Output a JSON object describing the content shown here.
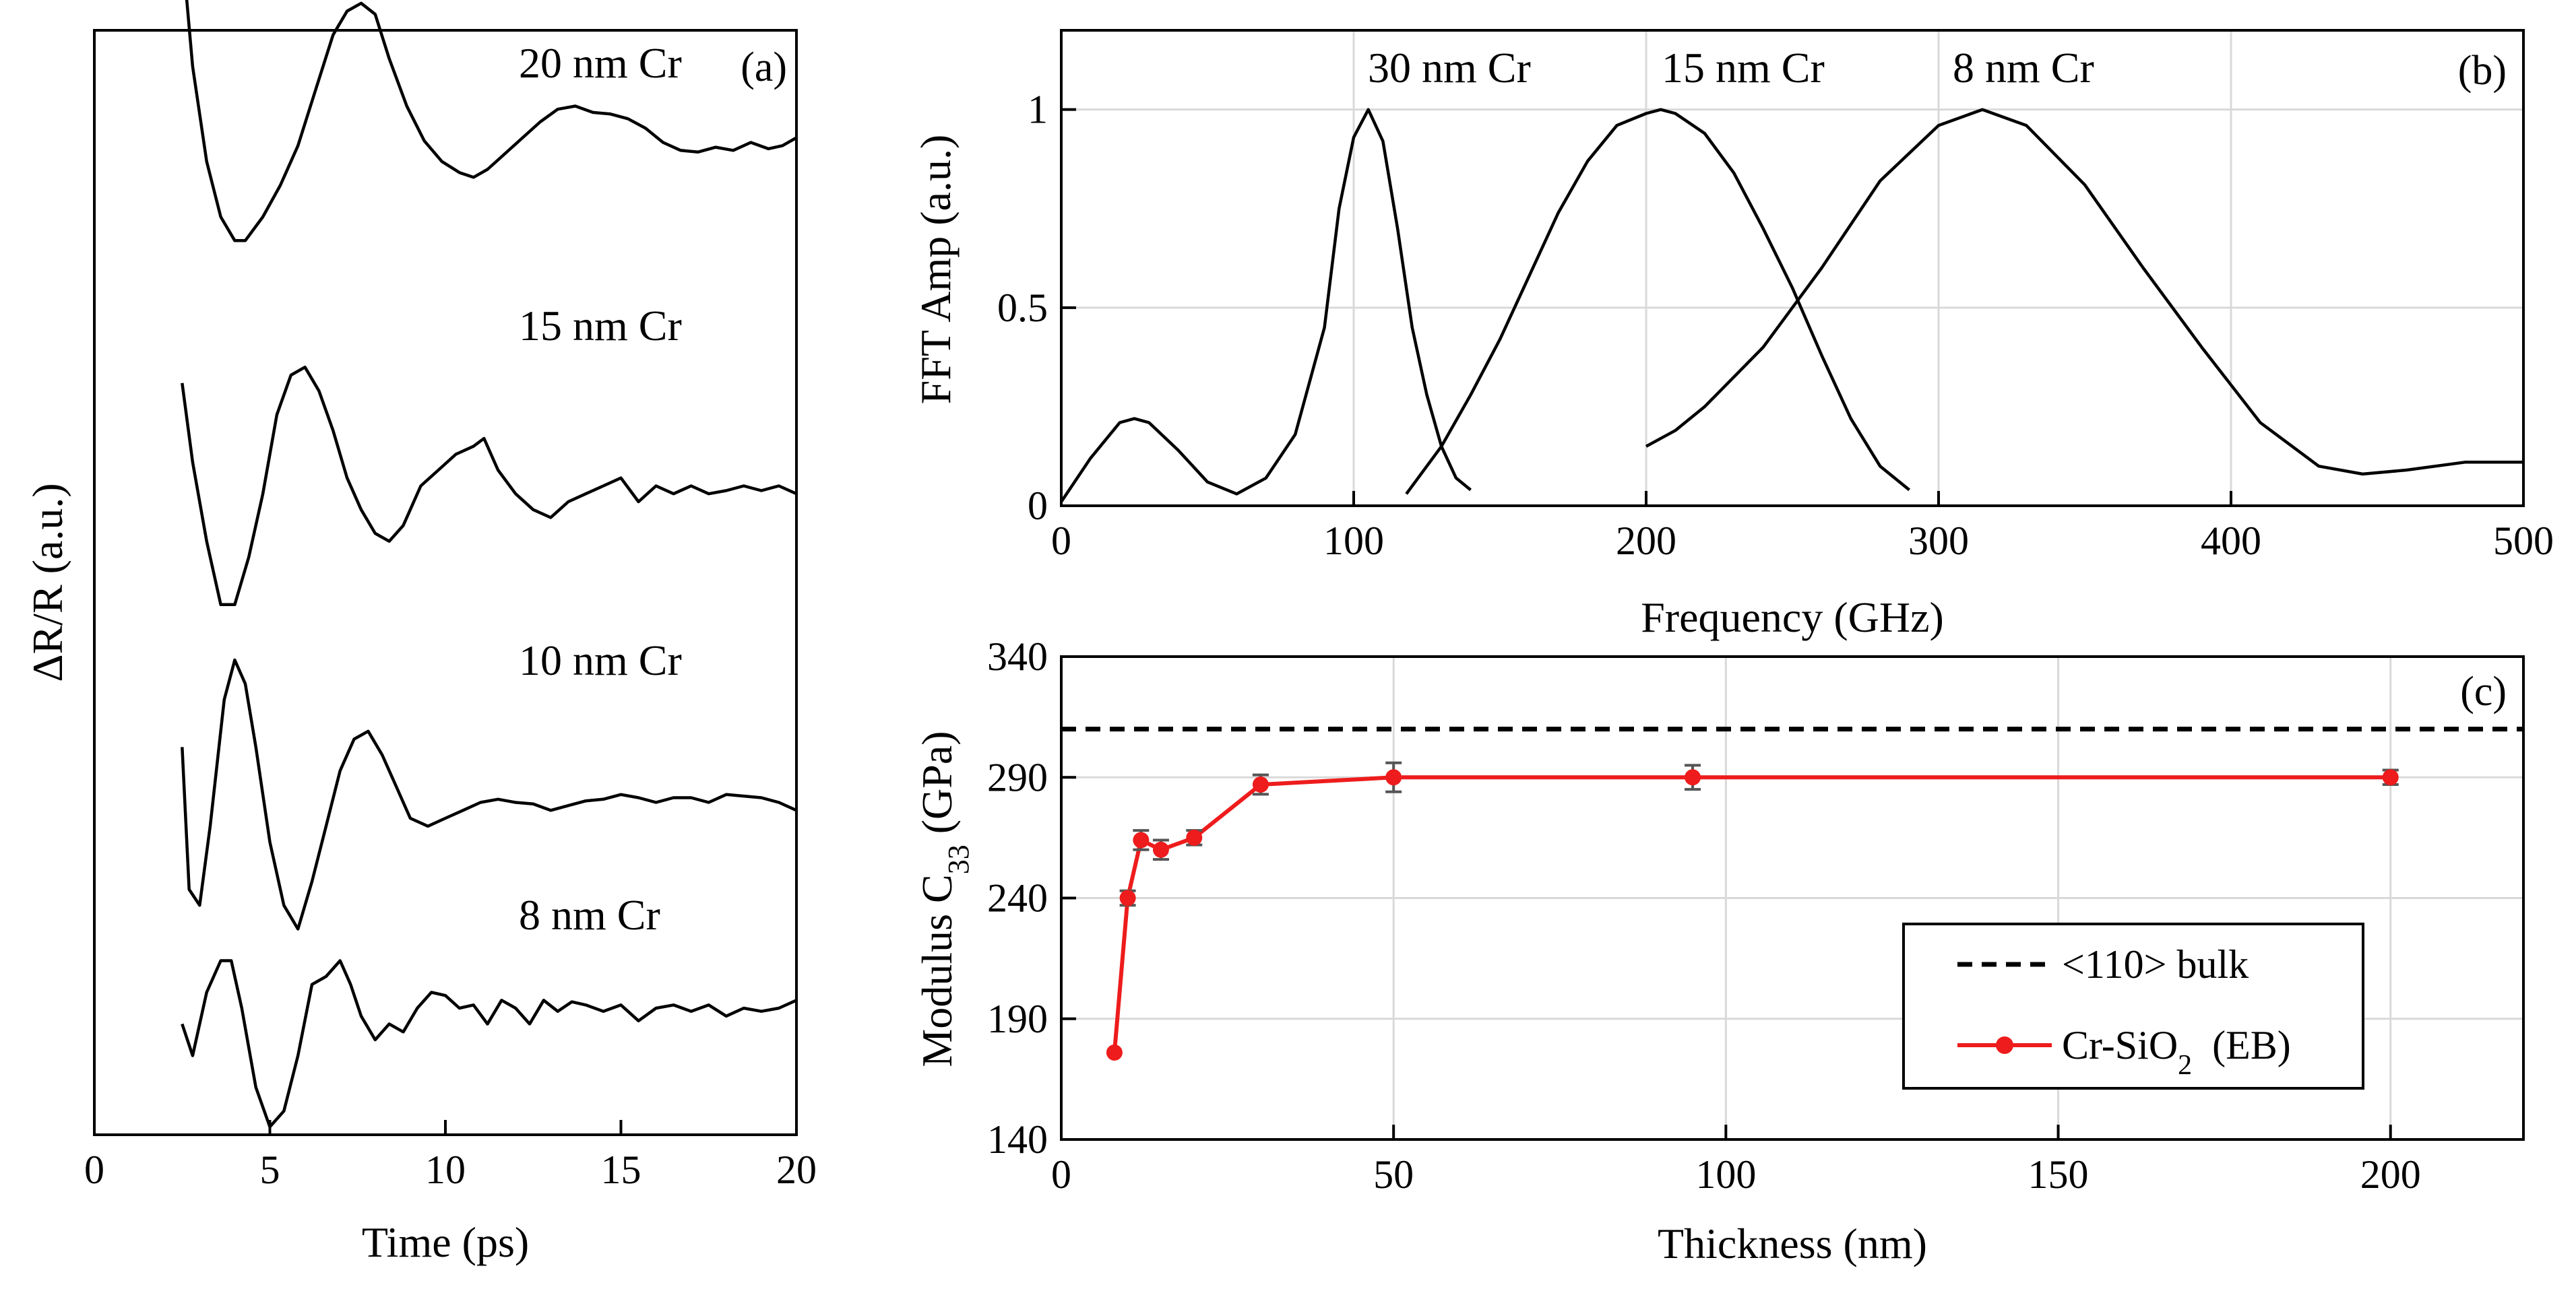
{
  "chart_data": [
    {
      "id": "a",
      "type": "line",
      "panel_label": "(a)",
      "xlabel": "Time (ps)",
      "ylabel": "ΔR/R (a.u.)",
      "xlim": [
        0,
        20
      ],
      "xticks": [
        "0",
        "5",
        "10",
        "15",
        "20"
      ],
      "grid": false,
      "series": [
        {
          "name": "20 nm Cr",
          "label": "20 nm Cr",
          "offset": 6.2,
          "x": [
            2.5,
            2.8,
            3.2,
            3.6,
            4.0,
            4.3,
            4.8,
            5.3,
            5.8,
            6.3,
            6.8,
            7.2,
            7.6,
            8.0,
            8.4,
            8.9,
            9.4,
            9.9,
            10.4,
            10.8,
            11.2,
            11.7,
            12.2,
            12.7,
            13.2,
            13.7,
            14.2,
            14.7,
            15.2,
            15.7,
            16.2,
            16.7,
            17.2,
            17.7,
            18.2,
            18.7,
            19.2,
            19.6,
            20.0
          ],
          "y": [
            1.3,
            0.55,
            -0.05,
            -0.4,
            -0.55,
            -0.55,
            -0.4,
            -0.2,
            0.05,
            0.4,
            0.75,
            0.9,
            0.95,
            0.88,
            0.6,
            0.3,
            0.08,
            -0.05,
            -0.12,
            -0.15,
            -0.1,
            0.0,
            0.1,
            0.2,
            0.28,
            0.3,
            0.26,
            0.25,
            0.22,
            0.16,
            0.07,
            0.02,
            0.01,
            0.04,
            0.02,
            0.07,
            0.03,
            0.05,
            0.1
          ]
        },
        {
          "name": "15 nm Cr",
          "label": "15 nm Cr",
          "offset": 4.15,
          "x": [
            2.5,
            2.8,
            3.2,
            3.6,
            4.0,
            4.4,
            4.8,
            5.2,
            5.6,
            6.0,
            6.4,
            6.8,
            7.2,
            7.6,
            8.0,
            8.4,
            8.8,
            9.3,
            9.8,
            10.3,
            10.8,
            11.1,
            11.5,
            12.0,
            12.5,
            13.0,
            13.5,
            14.0,
            14.5,
            15.0,
            15.5,
            16.0,
            16.5,
            17.0,
            17.5,
            18.0,
            18.5,
            19.0,
            19.5,
            20.0
          ],
          "y": [
            0.6,
            0.1,
            -0.4,
            -0.8,
            -0.8,
            -0.5,
            -0.1,
            0.4,
            0.65,
            0.7,
            0.55,
            0.3,
            0.0,
            -0.2,
            -0.35,
            -0.4,
            -0.3,
            -0.05,
            0.05,
            0.15,
            0.2,
            0.25,
            0.05,
            -0.1,
            -0.2,
            -0.25,
            -0.15,
            -0.1,
            -0.05,
            0.0,
            -0.15,
            -0.05,
            -0.1,
            -0.05,
            -0.1,
            -0.08,
            -0.05,
            -0.08,
            -0.05,
            -0.1
          ]
        },
        {
          "name": "10 nm Cr",
          "label": "10 nm Cr",
          "offset": 2.15,
          "x": [
            2.5,
            2.7,
            3.0,
            3.3,
            3.7,
            4.0,
            4.3,
            4.6,
            5.0,
            5.4,
            5.8,
            6.2,
            6.6,
            7.0,
            7.4,
            7.8,
            8.2,
            8.6,
            9.0,
            9.5,
            10.0,
            10.5,
            11.0,
            11.5,
            12.0,
            12.5,
            13.0,
            13.5,
            14.0,
            14.5,
            15.0,
            15.5,
            16.0,
            16.5,
            17.0,
            17.5,
            18.0,
            18.5,
            19.0,
            19.5,
            20.0
          ],
          "y": [
            0.3,
            -0.6,
            -0.7,
            -0.2,
            0.6,
            0.85,
            0.7,
            0.3,
            -0.3,
            -0.7,
            -0.85,
            -0.55,
            -0.2,
            0.15,
            0.35,
            0.4,
            0.25,
            0.05,
            -0.15,
            -0.2,
            -0.15,
            -0.1,
            -0.05,
            -0.03,
            -0.05,
            -0.06,
            -0.1,
            -0.07,
            -0.04,
            -0.03,
            0.0,
            -0.02,
            -0.05,
            -0.02,
            -0.02,
            -0.05,
            0.0,
            -0.01,
            -0.02,
            -0.05,
            -0.1
          ]
        },
        {
          "name": "8 nm Cr",
          "label": "8 nm Cr",
          "offset": 0.9,
          "x": [
            2.5,
            2.8,
            3.2,
            3.6,
            3.9,
            4.2,
            4.6,
            5.0,
            5.4,
            5.8,
            6.2,
            6.6,
            7.0,
            7.3,
            7.6,
            8.0,
            8.4,
            8.8,
            9.2,
            9.6,
            10.0,
            10.4,
            10.8,
            11.2,
            11.6,
            12.0,
            12.4,
            12.8,
            13.2,
            13.6,
            14.0,
            14.5,
            15.0,
            15.5,
            16.0,
            16.5,
            17.0,
            17.5,
            18.0,
            18.5,
            19.0,
            19.5,
            20.0
          ],
          "y": [
            -0.2,
            -0.4,
            0.0,
            0.2,
            0.2,
            -0.1,
            -0.6,
            -0.85,
            -0.75,
            -0.4,
            0.05,
            0.1,
            0.2,
            0.05,
            -0.15,
            -0.3,
            -0.2,
            -0.25,
            -0.1,
            0.0,
            -0.02,
            -0.1,
            -0.08,
            -0.2,
            -0.05,
            -0.1,
            -0.2,
            -0.05,
            -0.12,
            -0.06,
            -0.08,
            -0.12,
            -0.08,
            -0.18,
            -0.1,
            -0.08,
            -0.12,
            -0.08,
            -0.15,
            -0.1,
            -0.12,
            -0.1,
            -0.05
          ]
        }
      ]
    },
    {
      "id": "b",
      "type": "line",
      "panel_label": "(b)",
      "xlabel": "Frequency (GHz)",
      "ylabel": "FFT Amp (a.u.)",
      "xlim": [
        0,
        500
      ],
      "ylim": [
        0,
        1.2
      ],
      "xticks": [
        "0",
        "100",
        "200",
        "300",
        "400",
        "500"
      ],
      "yticks": [
        "0",
        "0.5",
        "1"
      ],
      "grid": true,
      "series": [
        {
          "name": "30 nm Cr",
          "label": "30 nm Cr",
          "x": [
            0,
            10,
            20,
            25,
            30,
            40,
            50,
            60,
            70,
            80,
            90,
            95,
            100,
            105,
            110,
            115,
            120,
            125,
            130,
            135,
            140
          ],
          "y": [
            0.01,
            0.12,
            0.21,
            0.22,
            0.21,
            0.14,
            0.06,
            0.03,
            0.07,
            0.18,
            0.45,
            0.75,
            0.93,
            1.0,
            0.92,
            0.7,
            0.45,
            0.28,
            0.15,
            0.07,
            0.04
          ]
        },
        {
          "name": "15 nm Cr",
          "label": "15 nm Cr",
          "x": [
            118,
            130,
            140,
            150,
            160,
            170,
            180,
            190,
            200,
            205,
            210,
            220,
            230,
            240,
            250,
            260,
            270,
            280,
            290
          ],
          "y": [
            0.03,
            0.15,
            0.28,
            0.42,
            0.58,
            0.74,
            0.87,
            0.96,
            0.99,
            1.0,
            0.99,
            0.94,
            0.84,
            0.7,
            0.55,
            0.38,
            0.22,
            0.1,
            0.04
          ]
        },
        {
          "name": "8 nm Cr",
          "label": "8 nm Cr",
          "x": [
            200,
            210,
            220,
            240,
            260,
            280,
            300,
            315,
            330,
            350,
            370,
            390,
            410,
            430,
            445,
            460,
            480,
            500
          ],
          "y": [
            0.15,
            0.19,
            0.25,
            0.4,
            0.6,
            0.82,
            0.96,
            1.0,
            0.96,
            0.81,
            0.6,
            0.4,
            0.21,
            0.1,
            0.08,
            0.09,
            0.11,
            0.11
          ]
        }
      ]
    },
    {
      "id": "c",
      "type": "line",
      "panel_label": "(c)",
      "xlabel": "Thickness (nm)",
      "ylabel": "Modulus C33 (GPa)",
      "ylabel_main": "Modulus C",
      "ylabel_sub": "33",
      "ylabel_unit": " (GPa)",
      "xlim": [
        0,
        220
      ],
      "ylim": [
        140,
        340
      ],
      "xticks": [
        "0",
        "50",
        "100",
        "150",
        "200"
      ],
      "yticks": [
        "140",
        "190",
        "240",
        "290",
        "340"
      ],
      "grid": true,
      "legend_position": "lower-right",
      "series": [
        {
          "name": "<110> bulk",
          "label": "<110> bulk",
          "style": "dashed",
          "color": "#000000",
          "x": [
            0,
            220
          ],
          "y": [
            310,
            310
          ]
        },
        {
          "name": "Cr-SiO2 (EB)",
          "label_main": "Cr-SiO",
          "label_sub": "2",
          "label_tail": "  (EB)",
          "style": "solid-marker",
          "color": "#ee1c1c",
          "x": [
            8,
            10,
            12,
            15,
            20,
            30,
            50,
            95,
            200
          ],
          "y": [
            176,
            240,
            264,
            260,
            265,
            287,
            290,
            290,
            290
          ],
          "err": [
            0,
            3,
            4,
            4,
            3,
            4,
            6,
            5,
            3
          ]
        }
      ]
    }
  ]
}
